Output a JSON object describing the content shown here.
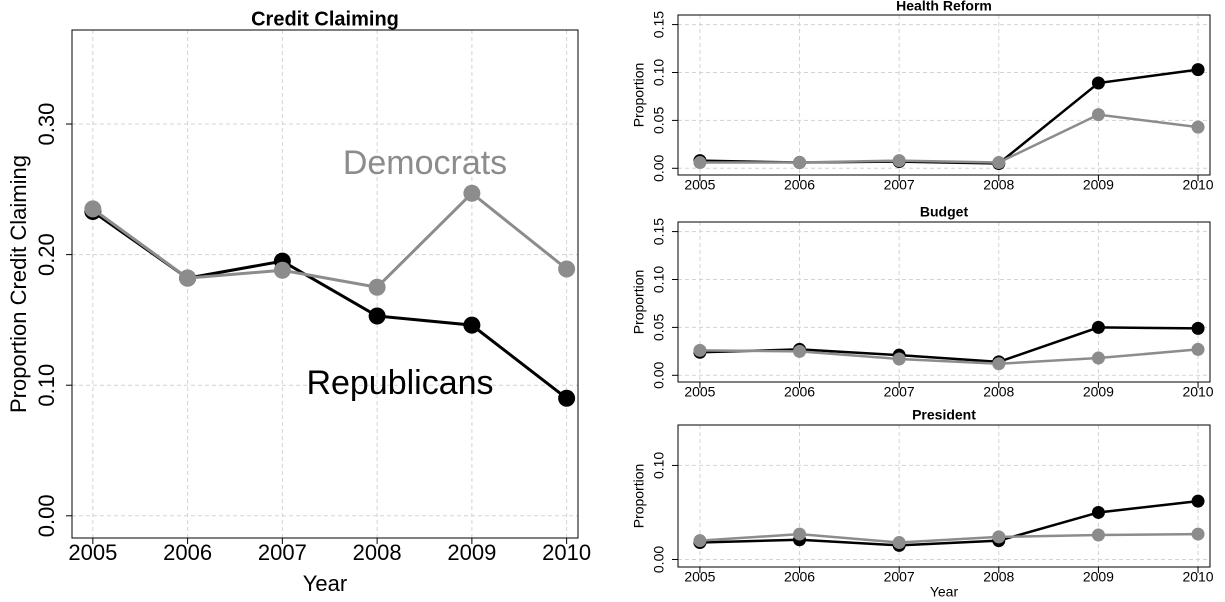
{
  "chart_data": [
    {
      "type": "line",
      "title": "Credit Claiming",
      "x_label": "Year",
      "y_label": "Proportion Credit Claiming",
      "x": [
        2005,
        2006,
        2007,
        2008,
        2009,
        2010
      ],
      "xlim": [
        2004.78,
        2010.12
      ],
      "xticks": [
        2005,
        2006,
        2007,
        2008,
        2009,
        2010
      ],
      "ylim": [
        -0.017,
        0.372
      ],
      "yticks": [
        {
          "value": 0,
          "label": "0.00"
        },
        {
          "value": 0.1,
          "label": "0.10"
        },
        {
          "value": 0.2,
          "label": "0.20"
        },
        {
          "value": 0.3,
          "label": "0.30"
        }
      ],
      "grid": true,
      "series": [
        {
          "name": "Republicans",
          "color": "#000000",
          "values": [
            0.233,
            0.182,
            0.195,
            0.153,
            0.146,
            0.09
          ]
        },
        {
          "name": "Democrats",
          "color": "#8c8c8c",
          "values": [
            0.235,
            0.182,
            0.188,
            0.175,
            0.247,
            0.189
          ]
        }
      ]
    },
    {
      "type": "line",
      "title": "Health Reform",
      "y_label": "Proportion",
      "x": [
        2005,
        2006,
        2007,
        2008,
        2009,
        2010
      ],
      "xlim": [
        2004.78,
        2010.12
      ],
      "xticks": [
        2005,
        2006,
        2007,
        2008,
        2009,
        2010
      ],
      "ylim": [
        -0.007,
        0.16
      ],
      "yticks": [
        {
          "value": 0,
          "label": "0.00"
        },
        {
          "value": 0.05,
          "label": "0.05"
        },
        {
          "value": 0.1,
          "label": "0.10"
        },
        {
          "value": 0.15,
          "label": "0.15"
        }
      ],
      "grid": true,
      "series": [
        {
          "color": "#000000",
          "values": [
            0.008,
            0.006,
            0.007,
            0.005,
            0.089,
            0.103
          ]
        },
        {
          "color": "#8c8c8c",
          "values": [
            0.006,
            0.006,
            0.008,
            0.006,
            0.056,
            0.043
          ]
        }
      ]
    },
    {
      "type": "line",
      "title": "Budget",
      "y_label": "Proportion",
      "x": [
        2005,
        2006,
        2007,
        2008,
        2009,
        2010
      ],
      "xlim": [
        2004.78,
        2010.12
      ],
      "xticks": [
        2005,
        2006,
        2007,
        2008,
        2009,
        2010
      ],
      "ylim": [
        -0.007,
        0.16
      ],
      "yticks": [
        {
          "value": 0,
          "label": "0.00"
        },
        {
          "value": 0.05,
          "label": "0.05"
        },
        {
          "value": 0.1,
          "label": "0.10"
        },
        {
          "value": 0.15,
          "label": "0.15"
        }
      ],
      "grid": true,
      "series": [
        {
          "color": "#000000",
          "values": [
            0.024,
            0.027,
            0.021,
            0.014,
            0.05,
            0.049
          ]
        },
        {
          "color": "#8c8c8c",
          "values": [
            0.026,
            0.025,
            0.017,
            0.012,
            0.018,
            0.027
          ]
        }
      ]
    },
    {
      "type": "line",
      "title": "President",
      "x_label": "Year",
      "y_label": "Proportion",
      "x": [
        2005,
        2006,
        2007,
        2008,
        2009,
        2010
      ],
      "xlim": [
        2004.78,
        2010.12
      ],
      "xticks": [
        2005,
        2006,
        2007,
        2008,
        2009,
        2010
      ],
      "ylim": [
        -0.008,
        0.143
      ],
      "yticks": [
        {
          "value": 0,
          "label": "0.00"
        },
        {
          "value": 0.1,
          "label": "0.10"
        }
      ],
      "grid": true,
      "series": [
        {
          "color": "#000000",
          "values": [
            0.018,
            0.021,
            0.015,
            0.02,
            0.05,
            0.062
          ]
        },
        {
          "color": "#8c8c8c",
          "values": [
            0.02,
            0.027,
            0.018,
            0.024,
            0.026,
            0.027
          ]
        }
      ]
    }
  ]
}
